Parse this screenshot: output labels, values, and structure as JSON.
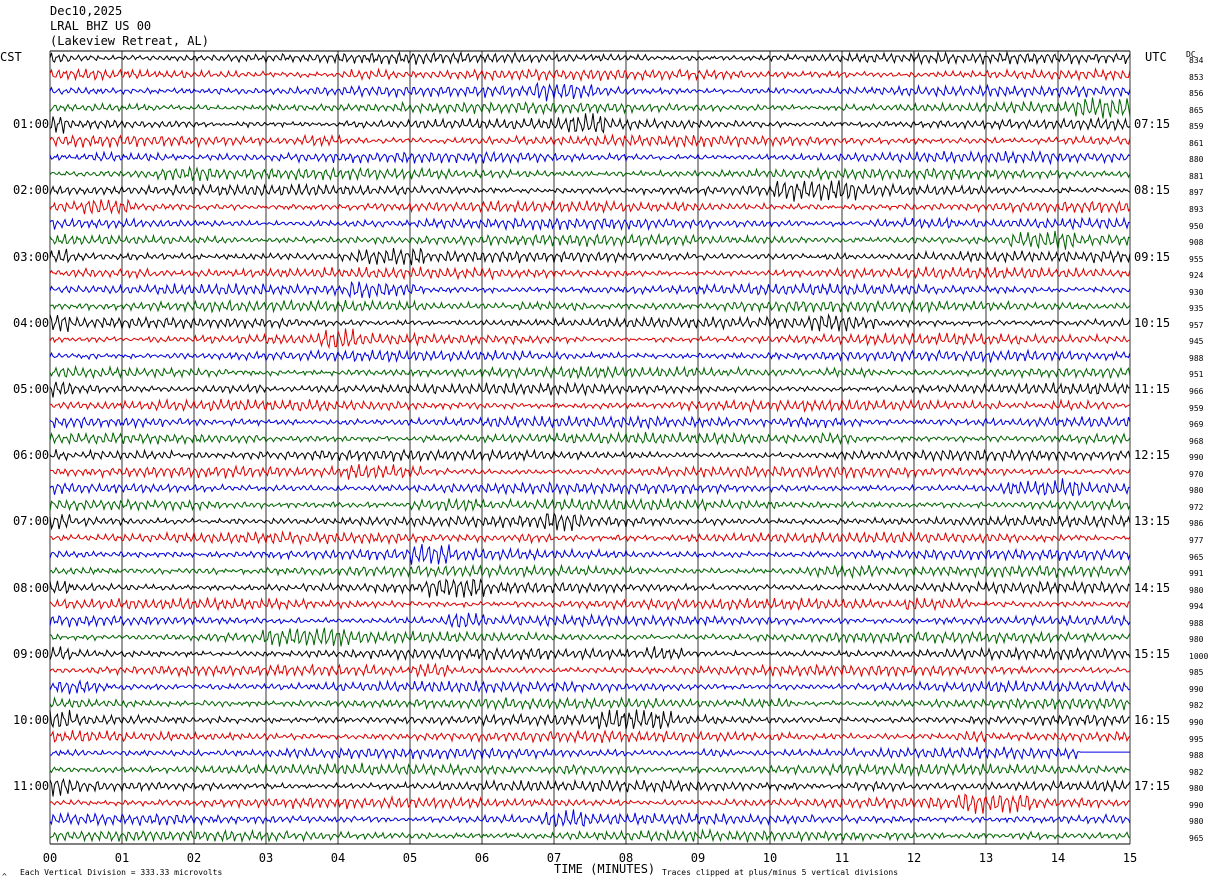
{
  "header": {
    "date": "Dec10,2025",
    "channel": "LRAL BHZ US 00",
    "location": "(Lakeview Retreat, AL)"
  },
  "left_zone_label": "CST",
  "right_zone_label": "UTC",
  "dc_label": "DC",
  "footer": {
    "scale_note": "Each Vertical Division =  333.33 microvolts",
    "x_title": "TIME (MINUTES)",
    "clip_note": "Traces clipped at plus/minus 5 vertical divisions",
    "corner_mark": "^"
  },
  "colors": {
    "trace_cycle": [
      "#000000",
      "#dd0000",
      "#0000dd",
      "#006400"
    ],
    "gridline": "#000000",
    "background": "#ffffff"
  },
  "chart_data": {
    "type": "line",
    "title": "LRAL BHZ US 00",
    "xlabel": "TIME (MINUTES)",
    "ylabel": "",
    "xlim": [
      0,
      15
    ],
    "x_ticks": [
      "00",
      "01",
      "02",
      "03",
      "04",
      "05",
      "06",
      "07",
      "08",
      "09",
      "10",
      "11",
      "12",
      "13",
      "14",
      "15"
    ],
    "row_minutes": 15,
    "num_rows": 48,
    "left_hour_labels": [
      "01:00",
      "02:00",
      "03:00",
      "04:00",
      "05:00",
      "06:00",
      "07:00",
      "08:00",
      "09:00",
      "10:00",
      "11:00"
    ],
    "right_hour_labels": [
      "07:15",
      "08:15",
      "09:15",
      "10:15",
      "11:15",
      "12:15",
      "13:15",
      "14:15",
      "15:15",
      "16:15",
      "17:15"
    ],
    "dc_offsets": [
      "834",
      "853",
      "856",
      "865",
      "859",
      "861",
      "880",
      "881",
      "897",
      "893",
      "950",
      "908",
      "955",
      "924",
      "930",
      "935",
      "957",
      "945",
      "988",
      "951",
      "966",
      "959",
      "969",
      "968",
      "990",
      "970",
      "980",
      "972",
      "986",
      "977",
      "965",
      "991",
      "980",
      "994",
      "988",
      "980",
      "1000",
      "985",
      "990",
      "982",
      "990",
      "995",
      "988",
      "982",
      "980",
      "990",
      "980",
      "965"
    ],
    "flat_segment": {
      "row": 42,
      "start_minute": 14.3,
      "end_minute": 15
    }
  }
}
